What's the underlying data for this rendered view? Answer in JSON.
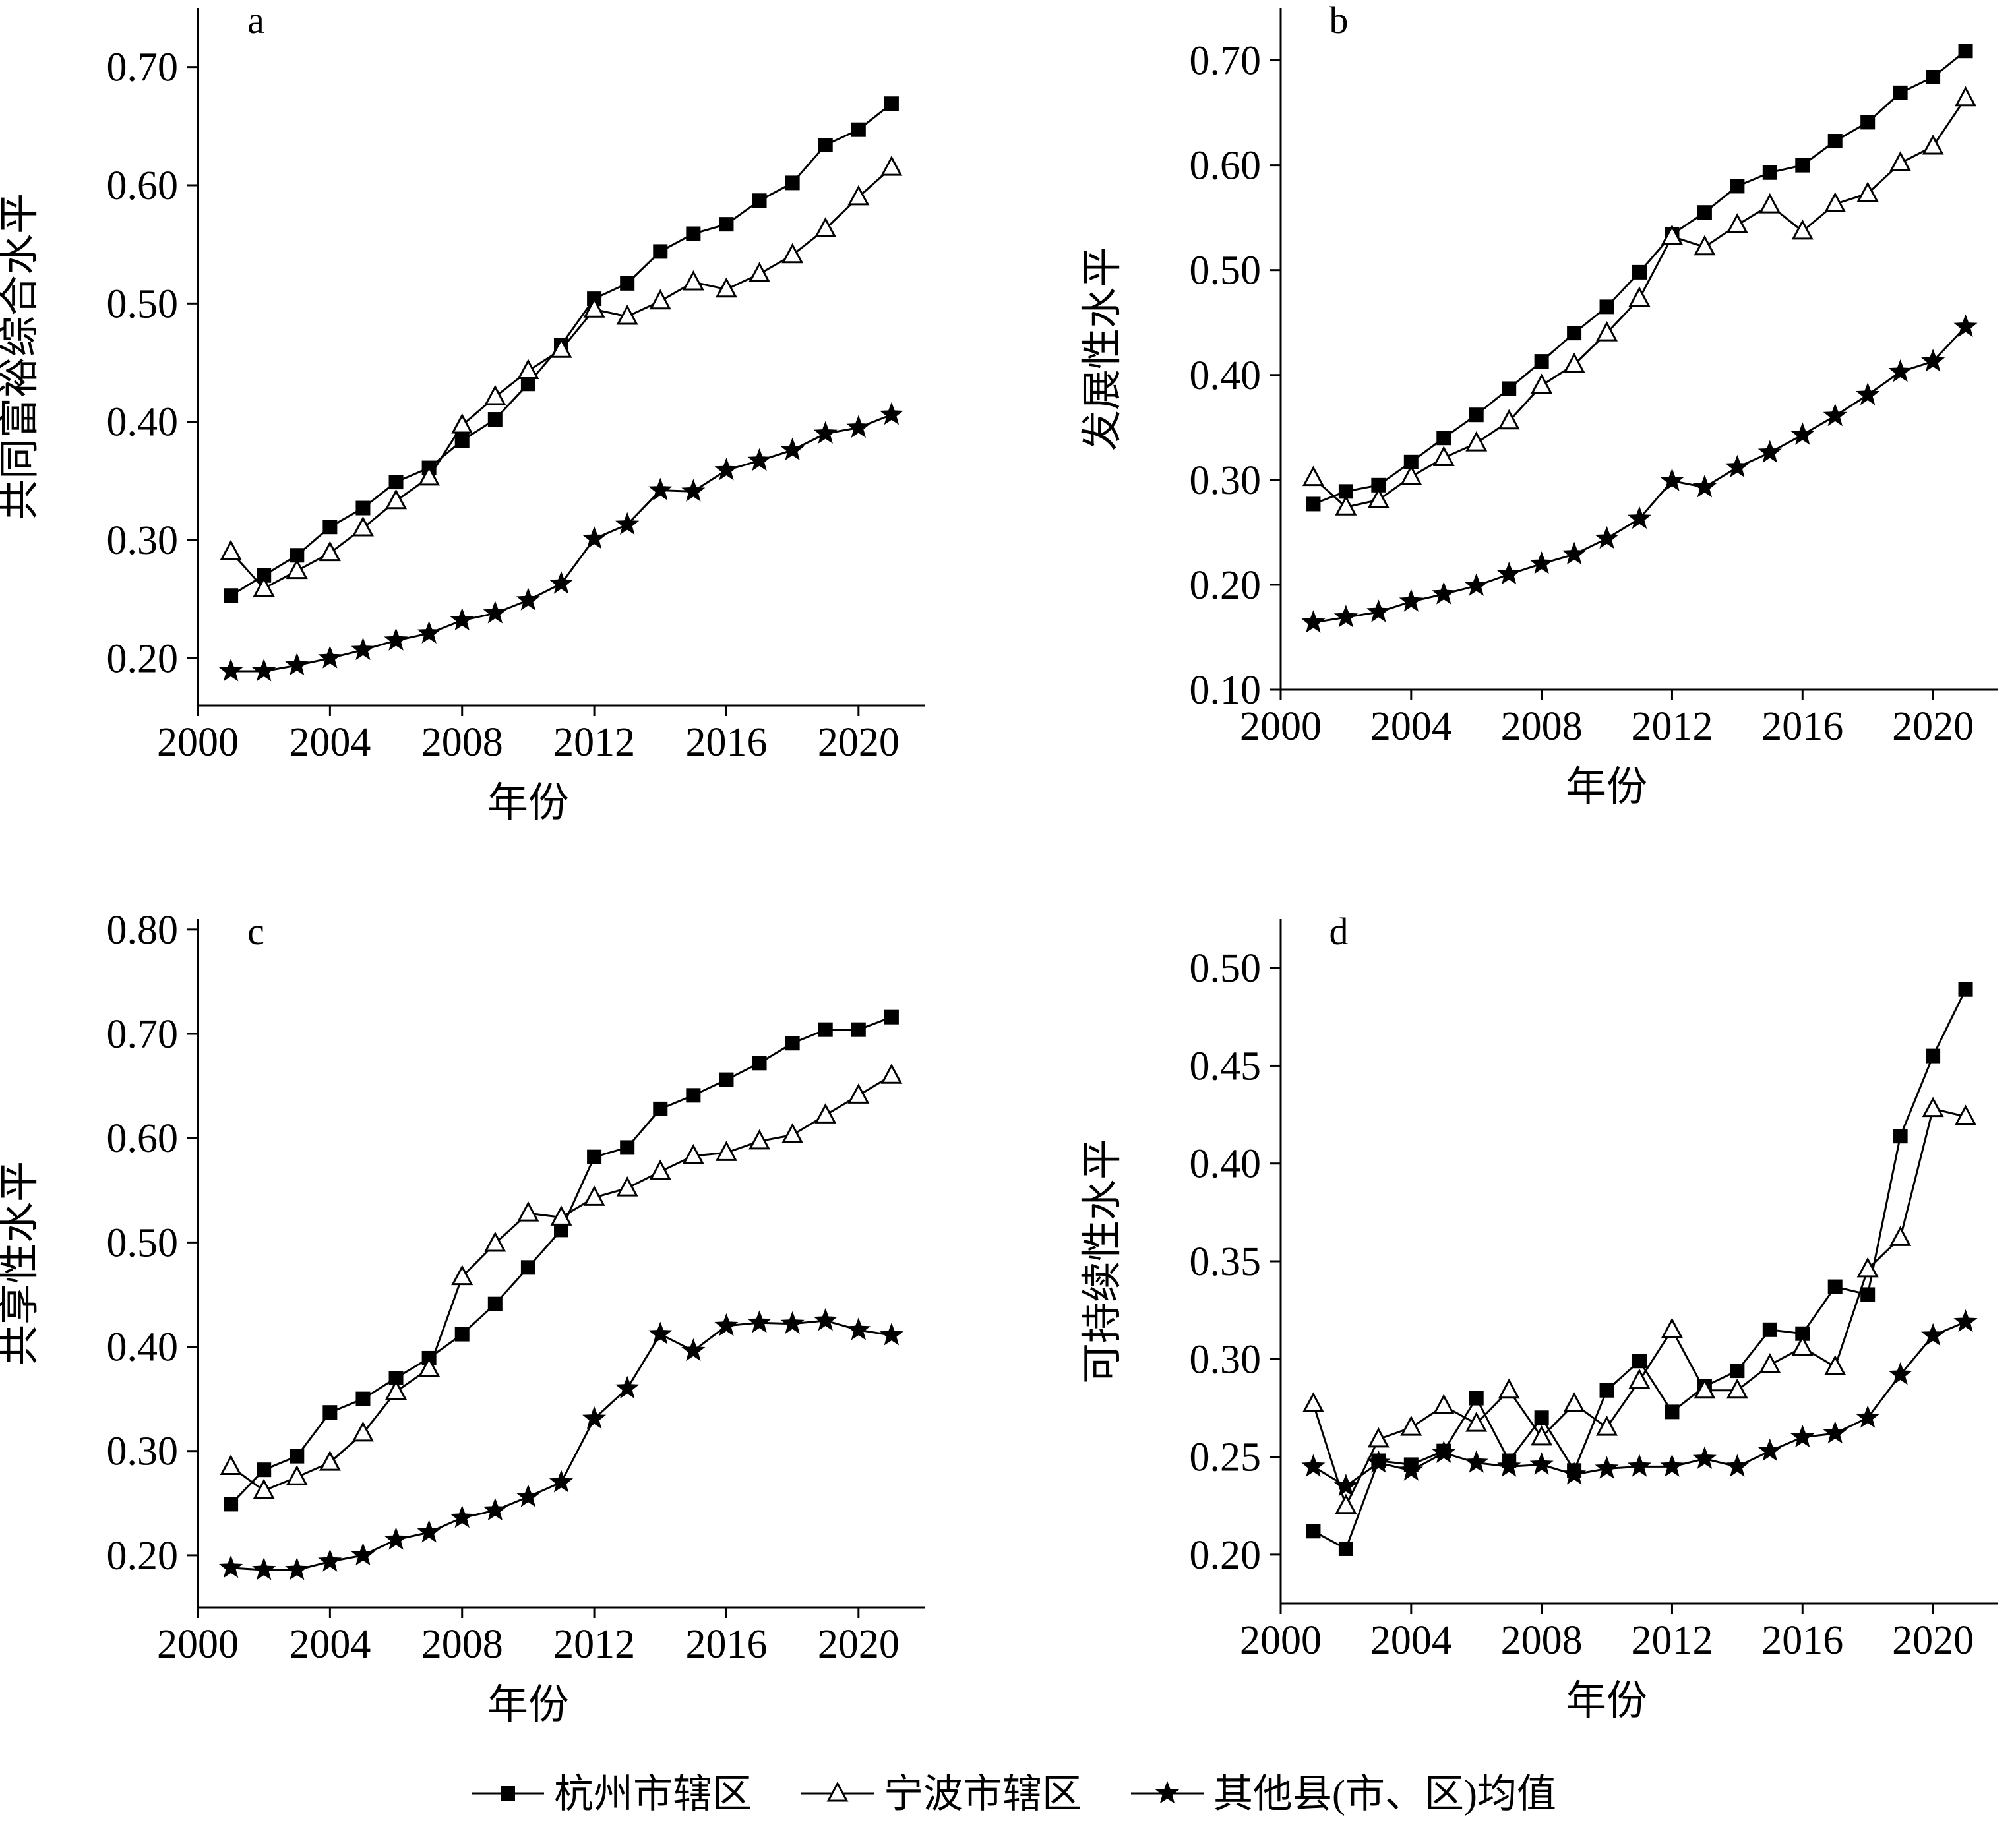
{
  "legend": {
    "items": [
      {
        "label": "杭州市辖区",
        "marker": "square"
      },
      {
        "label": "宁波市辖区",
        "marker": "triangle-open"
      },
      {
        "label": "其他县(市、区)均值",
        "marker": "star"
      }
    ]
  },
  "chart_data": [
    {
      "type": "line",
      "panel_label": "a",
      "xlabel": "年份",
      "ylabel": "共同富裕综合水平",
      "xlim": [
        2000,
        2022
      ],
      "xticks": [
        2000,
        2004,
        2008,
        2012,
        2016,
        2020
      ],
      "ylim": [
        0.16,
        0.75
      ],
      "yticks": [
        0.2,
        0.3,
        0.4,
        0.5,
        0.6,
        0.7
      ],
      "x": [
        2001,
        2002,
        2003,
        2004,
        2005,
        2006,
        2007,
        2008,
        2009,
        2010,
        2011,
        2012,
        2013,
        2014,
        2015,
        2016,
        2017,
        2018,
        2019,
        2020,
        2021
      ],
      "series": [
        {
          "name": "杭州市辖区",
          "marker": "square",
          "values": [
            0.253,
            0.27,
            0.287,
            0.311,
            0.327,
            0.349,
            0.361,
            0.384,
            0.402,
            0.432,
            0.465,
            0.504,
            0.517,
            0.544,
            0.559,
            0.567,
            0.587,
            0.602,
            0.634,
            0.647,
            0.669
          ]
        },
        {
          "name": "宁波市辖区",
          "marker": "triangle-open",
          "values": [
            0.29,
            0.259,
            0.274,
            0.289,
            0.31,
            0.333,
            0.353,
            0.397,
            0.421,
            0.443,
            0.461,
            0.495,
            0.489,
            0.502,
            0.518,
            0.512,
            0.525,
            0.541,
            0.563,
            0.59,
            0.615
          ]
        },
        {
          "name": "其他县(市、区)均值",
          "marker": "star",
          "values": [
            0.189,
            0.189,
            0.194,
            0.2,
            0.207,
            0.215,
            0.221,
            0.232,
            0.238,
            0.249,
            0.263,
            0.301,
            0.313,
            0.342,
            0.341,
            0.359,
            0.367,
            0.376,
            0.39,
            0.395,
            0.406
          ]
        }
      ]
    },
    {
      "type": "line",
      "panel_label": "b",
      "xlabel": "年份",
      "ylabel": "发展性水平",
      "xlim": [
        2000,
        2022
      ],
      "xticks": [
        2000,
        2004,
        2008,
        2012,
        2016,
        2020
      ],
      "ylim": [
        0.1,
        0.75
      ],
      "yticks": [
        0.1,
        0.2,
        0.3,
        0.4,
        0.5,
        0.6,
        0.7
      ],
      "x": [
        2001,
        2002,
        2003,
        2004,
        2005,
        2006,
        2007,
        2008,
        2009,
        2010,
        2011,
        2012,
        2013,
        2014,
        2015,
        2016,
        2017,
        2018,
        2019,
        2020,
        2021
      ],
      "series": [
        {
          "name": "杭州市辖区",
          "marker": "square",
          "values": [
            0.277,
            0.289,
            0.295,
            0.317,
            0.34,
            0.362,
            0.387,
            0.413,
            0.44,
            0.465,
            0.498,
            0.534,
            0.555,
            0.58,
            0.593,
            0.6,
            0.623,
            0.641,
            0.669,
            0.684,
            0.709
          ]
        },
        {
          "name": "宁波市辖区",
          "marker": "triangle-open",
          "values": [
            0.302,
            0.274,
            0.281,
            0.303,
            0.321,
            0.335,
            0.356,
            0.39,
            0.41,
            0.44,
            0.473,
            0.532,
            0.522,
            0.543,
            0.562,
            0.537,
            0.563,
            0.573,
            0.602,
            0.618,
            0.664
          ]
        },
        {
          "name": "其他县(市、区)均值",
          "marker": "star",
          "values": [
            0.164,
            0.169,
            0.174,
            0.184,
            0.191,
            0.199,
            0.21,
            0.22,
            0.229,
            0.244,
            0.263,
            0.299,
            0.293,
            0.312,
            0.326,
            0.343,
            0.361,
            0.381,
            0.403,
            0.413,
            0.446
          ]
        }
      ]
    },
    {
      "type": "line",
      "panel_label": "c",
      "xlabel": "年份",
      "ylabel": "共享性水平",
      "xlim": [
        2000,
        2022
      ],
      "xticks": [
        2000,
        2004,
        2008,
        2012,
        2016,
        2020
      ],
      "ylim": [
        0.15,
        0.81
      ],
      "yticks": [
        0.2,
        0.3,
        0.4,
        0.5,
        0.6,
        0.7,
        0.8
      ],
      "x": [
        2001,
        2002,
        2003,
        2004,
        2005,
        2006,
        2007,
        2008,
        2009,
        2010,
        2011,
        2012,
        2013,
        2014,
        2015,
        2016,
        2017,
        2018,
        2019,
        2020,
        2021
      ],
      "series": [
        {
          "name": "杭州市辖区",
          "marker": "square",
          "values": [
            0.249,
            0.282,
            0.295,
            0.337,
            0.35,
            0.37,
            0.389,
            0.412,
            0.441,
            0.476,
            0.512,
            0.582,
            0.591,
            0.628,
            0.641,
            0.656,
            0.672,
            0.691,
            0.704,
            0.704,
            0.716
          ]
        },
        {
          "name": "宁波市辖区",
          "marker": "triangle-open",
          "values": [
            0.285,
            0.262,
            0.275,
            0.289,
            0.317,
            0.357,
            0.379,
            0.467,
            0.499,
            0.528,
            0.524,
            0.543,
            0.552,
            0.568,
            0.583,
            0.586,
            0.597,
            0.603,
            0.622,
            0.641,
            0.66
          ]
        },
        {
          "name": "其他县(市、区)均值",
          "marker": "star",
          "values": [
            0.188,
            0.186,
            0.186,
            0.194,
            0.2,
            0.215,
            0.222,
            0.236,
            0.243,
            0.256,
            0.27,
            0.331,
            0.36,
            0.412,
            0.396,
            0.42,
            0.423,
            0.422,
            0.425,
            0.416,
            0.411
          ]
        }
      ]
    },
    {
      "type": "line",
      "panel_label": "d",
      "xlabel": "年份",
      "ylabel": "可持续性水平",
      "xlim": [
        2000,
        2022
      ],
      "xticks": [
        2000,
        2004,
        2008,
        2012,
        2016,
        2020
      ],
      "ylim": [
        0.175,
        0.525
      ],
      "yticks": [
        0.2,
        0.25,
        0.3,
        0.35,
        0.4,
        0.45,
        0.5
      ],
      "x": [
        2001,
        2002,
        2003,
        2004,
        2005,
        2006,
        2007,
        2008,
        2009,
        2010,
        2011,
        2012,
        2013,
        2014,
        2015,
        2016,
        2017,
        2018,
        2019,
        2020,
        2021
      ],
      "series": [
        {
          "name": "杭州市辖区",
          "marker": "square",
          "values": [
            0.212,
            0.203,
            0.248,
            0.246,
            0.253,
            0.28,
            0.248,
            0.27,
            0.243,
            0.284,
            0.299,
            0.273,
            0.286,
            0.294,
            0.315,
            0.313,
            0.337,
            0.333,
            0.414,
            0.455,
            0.489
          ]
        },
        {
          "name": "宁波市辖区",
          "marker": "triangle-open",
          "values": [
            0.277,
            0.225,
            0.259,
            0.265,
            0.276,
            0.267,
            0.284,
            0.26,
            0.277,
            0.265,
            0.289,
            0.315,
            0.284,
            0.284,
            0.297,
            0.306,
            0.296,
            0.346,
            0.362,
            0.428,
            0.424
          ]
        },
        {
          "name": "其他县(市、区)均值",
          "marker": "star",
          "values": [
            0.245,
            0.235,
            0.247,
            0.243,
            0.252,
            0.247,
            0.245,
            0.246,
            0.241,
            0.244,
            0.245,
            0.245,
            0.249,
            0.245,
            0.253,
            0.26,
            0.262,
            0.27,
            0.292,
            0.312,
            0.319
          ]
        }
      ]
    }
  ]
}
